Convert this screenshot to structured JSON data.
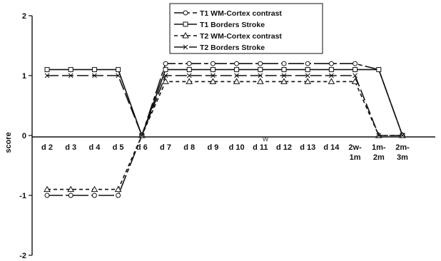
{
  "chart_data": {
    "type": "line",
    "ylabel": "score",
    "ylim": [
      -2,
      2
    ],
    "yticks": [
      -2,
      -1,
      0,
      1,
      2
    ],
    "categories": [
      "d 2",
      "d 3",
      "d 4",
      "d 5",
      "d 6",
      "d 7",
      "d 8",
      "d 9",
      "d 10",
      "d 11",
      "d 12",
      "d 13",
      "d 14",
      "2w-\n1m",
      "1m-\n2m",
      "2m-\n3m"
    ],
    "stray_text": "W",
    "series": [
      {
        "name": "T1 WM-Cortex contrast",
        "marker": "circle",
        "dash": "long-short",
        "color": "#111111",
        "values": [
          -1,
          -1,
          -1,
          -1,
          0,
          1.2,
          1.2,
          1.2,
          1.2,
          1.2,
          1.2,
          1.2,
          1.2,
          1.2,
          1.1,
          0
        ]
      },
      {
        "name": "T1 Borders Stroke",
        "marker": "square",
        "dash": "solid",
        "color": "#111111",
        "values": [
          1.1,
          1.1,
          1.1,
          1.1,
          0,
          1.1,
          1.1,
          1.1,
          1.1,
          1.1,
          1.1,
          1.1,
          1.1,
          1.1,
          1.1,
          0
        ]
      },
      {
        "name": "T2 WM-Cortex contrast",
        "marker": "triangle",
        "dash": "short",
        "color": "#111111",
        "values": [
          -0.9,
          -0.9,
          -0.9,
          -0.9,
          0,
          0.9,
          0.9,
          0.9,
          0.9,
          0.9,
          0.9,
          0.9,
          0.9,
          0.9,
          0,
          0
        ]
      },
      {
        "name": "T2 Borders Stroke",
        "marker": "x",
        "dash": "long",
        "color": "#111111",
        "values": [
          1,
          1,
          1,
          1,
          0,
          1,
          1,
          1,
          1,
          1,
          1,
          1,
          1,
          1,
          0,
          0
        ]
      }
    ],
    "legend_position": "top-center"
  }
}
